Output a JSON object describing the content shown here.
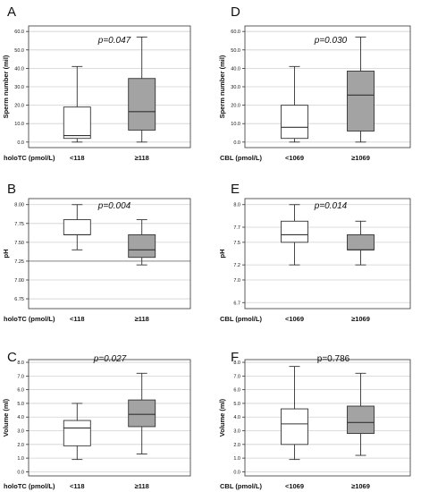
{
  "chart_data": [
    {
      "type": "box",
      "panel_letter": "A",
      "ylabel": "Sperm number (mil)",
      "xlabel": "holoTC (pmol/L)",
      "categories": [
        "<118",
        "≥118"
      ],
      "yticks": [
        "0.0",
        "10.0",
        "20.0",
        "30.0",
        "40.0",
        "50.0",
        "60.0"
      ],
      "ylim": [
        -3,
        63
      ],
      "pvalue": "p=0.047",
      "boxes": [
        {
          "min": 0,
          "q1": 2,
          "median": 3.5,
          "q3": 19,
          "max": 41,
          "fill": "#ffffff"
        },
        {
          "min": 0,
          "q1": 6.5,
          "median": 16.5,
          "q3": 34.5,
          "max": 57,
          "fill": "#a3a3a3"
        }
      ]
    },
    {
      "type": "box",
      "panel_letter": "D",
      "ylabel": "Sperm number (mil)",
      "xlabel": "CBL (pmol/L)",
      "categories": [
        "<1069",
        "≥1069"
      ],
      "yticks": [
        "0.0",
        "10.0",
        "20.0",
        "30.0",
        "40.0",
        "50.0",
        "60.0"
      ],
      "ylim": [
        -3,
        63
      ],
      "pvalue": "p=0.030",
      "boxes": [
        {
          "min": 0,
          "q1": 2,
          "median": 8,
          "q3": 20,
          "max": 41,
          "fill": "#ffffff"
        },
        {
          "min": 0,
          "q1": 6,
          "median": 25.5,
          "q3": 38.5,
          "max": 57,
          "fill": "#a3a3a3"
        }
      ]
    },
    {
      "type": "box",
      "panel_letter": "B",
      "ylabel": "pH",
      "xlabel": "holoTC (pmol/L)",
      "categories": [
        "<118",
        "≥118"
      ],
      "yticks": [
        "6.75",
        "7.00",
        "7.25",
        "7.50",
        "7.75",
        "8.00"
      ],
      "ylim": [
        6.62,
        8.08
      ],
      "pvalue": "p=0.004",
      "boxes": [
        {
          "min": 7.4,
          "q1": 7.6,
          "median": 7.6,
          "q3": 7.8,
          "max": 8.0,
          "fill": "#ffffff"
        },
        {
          "min": 7.2,
          "q1": 7.3,
          "median": 7.4,
          "q3": 7.6,
          "max": 7.8,
          "fill": "#a3a3a3"
        }
      ],
      "reference_lines": [
        7.25
      ]
    },
    {
      "type": "box",
      "panel_letter": "E",
      "ylabel": "pH",
      "xlabel": "CBL (pmol/L)",
      "categories": [
        "<1069",
        "≥1069"
      ],
      "yticks": [
        "6.7",
        "7.0",
        "7.2",
        "7.5",
        "7.7",
        "8.0"
      ],
      "ylim": [
        6.62,
        8.08
      ],
      "pvalue": "p=0.014",
      "boxes": [
        {
          "min": 7.2,
          "q1": 7.5,
          "median": 7.6,
          "q3": 7.78,
          "max": 8.0,
          "fill": "#ffffff"
        },
        {
          "min": 7.2,
          "q1": 7.4,
          "median": 7.4,
          "q3": 7.6,
          "max": 7.78,
          "fill": "#a3a3a3"
        }
      ]
    },
    {
      "type": "box",
      "panel_letter": "C",
      "ylabel": "Volume (ml)",
      "xlabel": "holoTC (pmol/L)",
      "categories": [
        "<118",
        "≥118"
      ],
      "yticks": [
        "0.0",
        "1.0",
        "2.0",
        "3.0",
        "4.0",
        "5.0",
        "6.0",
        "7.0",
        "8.0"
      ],
      "ylim": [
        -0.3,
        8.2
      ],
      "pvalue": "p=0.027",
      "boxes": [
        {
          "min": 0.9,
          "q1": 1.9,
          "median": 3.2,
          "q3": 3.75,
          "max": 5.0,
          "fill": "#ffffff"
        },
        {
          "min": 1.3,
          "q1": 3.3,
          "median": 4.2,
          "q3": 5.25,
          "max": 7.2,
          "fill": "#a3a3a3"
        }
      ]
    },
    {
      "type": "box",
      "panel_letter": "F",
      "ylabel": "Volume (ml)",
      "xlabel": "CBL (pmol/L)",
      "categories": [
        "<1069",
        "≥1069"
      ],
      "yticks": [
        "0.0",
        "1.0",
        "2.0",
        "3.0",
        "4.0",
        "5.0",
        "6.0",
        "7.0",
        "8.0"
      ],
      "ylim": [
        -0.3,
        8.2
      ],
      "pvalue": "p=0.786",
      "boxes": [
        {
          "min": 0.9,
          "q1": 2.0,
          "median": 3.5,
          "q3": 4.6,
          "max": 7.7,
          "fill": "#ffffff"
        },
        {
          "min": 1.2,
          "q1": 2.8,
          "median": 3.6,
          "q3": 4.8,
          "max": 7.2,
          "fill": "#a3a3a3"
        }
      ]
    }
  ],
  "colors": {
    "box_light": "#ffffff",
    "box_dark": "#a3a3a3",
    "frame": "#333333",
    "gridline": "#d0d0d0",
    "text": "#111111"
  }
}
